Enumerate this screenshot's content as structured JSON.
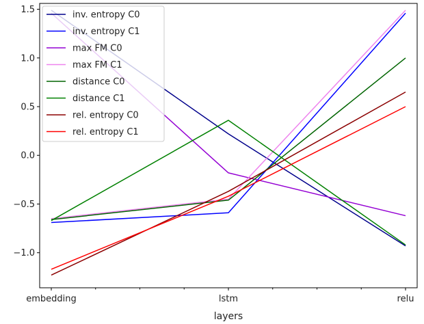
{
  "chart_data": {
    "type": "line",
    "title": "",
    "xlabel": "layers",
    "ylabel": "",
    "categories": [
      "embedding",
      "lstm",
      "relu"
    ],
    "ylim": [
      -1.36,
      1.56
    ],
    "yticks": [
      -1.0,
      -0.5,
      0.0,
      0.5,
      1.0,
      1.5
    ],
    "ytick_labels": [
      "−1.0",
      "−0.5",
      "0.0",
      "0.5",
      "1.0",
      "1.5"
    ],
    "minor_xticks_between": 3,
    "grid": false,
    "legend_position": "top-left",
    "series": [
      {
        "name": "inv. entropy C0",
        "color": "#00008b",
        "values": [
          1.49,
          0.22,
          -0.93
        ]
      },
      {
        "name": "inv. entropy C1",
        "color": "#0000ff",
        "values": [
          -0.69,
          -0.59,
          1.46
        ]
      },
      {
        "name": "max FM C0",
        "color": "#9400d3",
        "values": [
          1.46,
          -0.18,
          -0.62
        ]
      },
      {
        "name": "max FM C1",
        "color": "#ee82ee",
        "values": [
          -0.65,
          -0.45,
          1.49
        ]
      },
      {
        "name": "distance C0",
        "color": "#006400",
        "values": [
          -0.66,
          -0.46,
          1.0
        ]
      },
      {
        "name": "distance C1",
        "color": "#008000",
        "values": [
          -0.67,
          0.36,
          -0.92
        ]
      },
      {
        "name": "rel. entropy C0",
        "color": "#8b0000",
        "values": [
          -1.23,
          -0.37,
          0.65
        ]
      },
      {
        "name": "rel. entropy C1",
        "color": "#ff0000",
        "values": [
          -1.17,
          -0.42,
          0.5
        ]
      }
    ]
  }
}
